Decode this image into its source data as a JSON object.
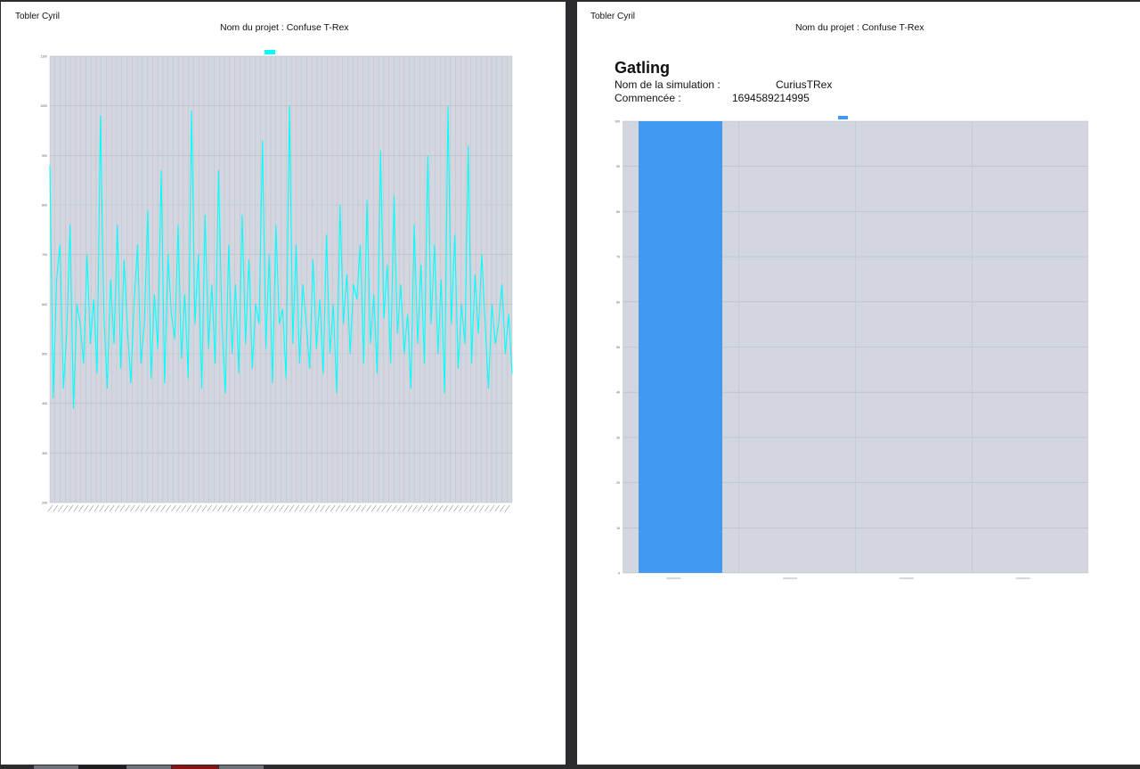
{
  "page1": {
    "author": "Tobler Cyril",
    "project": "Nom du projet : Confuse T-Rex"
  },
  "page2": {
    "author": "Tobler Cyril",
    "project": "Nom du projet : Confuse T-Rex",
    "heading": "Gatling",
    "simulation_label": "Nom de la simulation :",
    "simulation_value": "CuriusTRex",
    "started_label": "Commencée :",
    "started_value": "1694589214995"
  },
  "chart_data": [
    {
      "type": "line",
      "title": "",
      "legend": [
        {
          "name": "",
          "color": "#00ffff"
        }
      ],
      "legend_position": "top",
      "ylim": [
        200,
        1100
      ],
      "y_ticks": [
        200,
        300,
        400,
        500,
        600,
        700,
        800,
        900,
        1000,
        1100
      ],
      "grid": true,
      "series": [
        {
          "name": "",
          "color": "#00ffff",
          "values": [
            880,
            410,
            650,
            720,
            430,
            540,
            760,
            390,
            600,
            560,
            480,
            700,
            520,
            610,
            460,
            980,
            580,
            430,
            650,
            520,
            760,
            470,
            690,
            550,
            440,
            610,
            720,
            480,
            560,
            790,
            450,
            620,
            510,
            870,
            440,
            700,
            580,
            530,
            760,
            490,
            620,
            450,
            990,
            560,
            700,
            430,
            780,
            510,
            640,
            480,
            870,
            560,
            420,
            720,
            500,
            640,
            460,
            780,
            520,
            690,
            470,
            600,
            560,
            930,
            510,
            700,
            440,
            760,
            560,
            590,
            450,
            1000,
            520,
            720,
            480,
            640,
            560,
            470,
            690,
            510,
            610,
            460,
            740,
            500,
            600,
            420,
            800,
            560,
            660,
            500,
            640,
            610,
            720,
            480,
            810,
            520,
            620,
            460,
            910,
            570,
            680,
            480,
            820,
            540,
            640,
            500,
            580,
            430,
            760,
            520,
            680,
            480,
            900,
            560,
            720,
            500,
            650,
            420,
            1000,
            560,
            740,
            470,
            600,
            520,
            920,
            480,
            660,
            540,
            700,
            560,
            430,
            600,
            520,
            560,
            640,
            500,
            580,
            460
          ]
        }
      ]
    },
    {
      "type": "bar",
      "title": "",
      "legend": [
        {
          "name": "",
          "color": "#4299f2"
        }
      ],
      "legend_position": "top",
      "categories": [
        "",
        "",
        "",
        ""
      ],
      "values": [
        100,
        0,
        0,
        0
      ],
      "ylim": [
        0,
        100
      ],
      "y_ticks": [
        0,
        10,
        20,
        30,
        40,
        50,
        60,
        70,
        80,
        90,
        100
      ],
      "grid": true,
      "color": "#4299f2"
    }
  ],
  "taskbar": {
    "colors": [
      "#6f7479",
      "#1d1e22",
      "#6f7479",
      "#8a1414",
      "#6f7479"
    ]
  }
}
